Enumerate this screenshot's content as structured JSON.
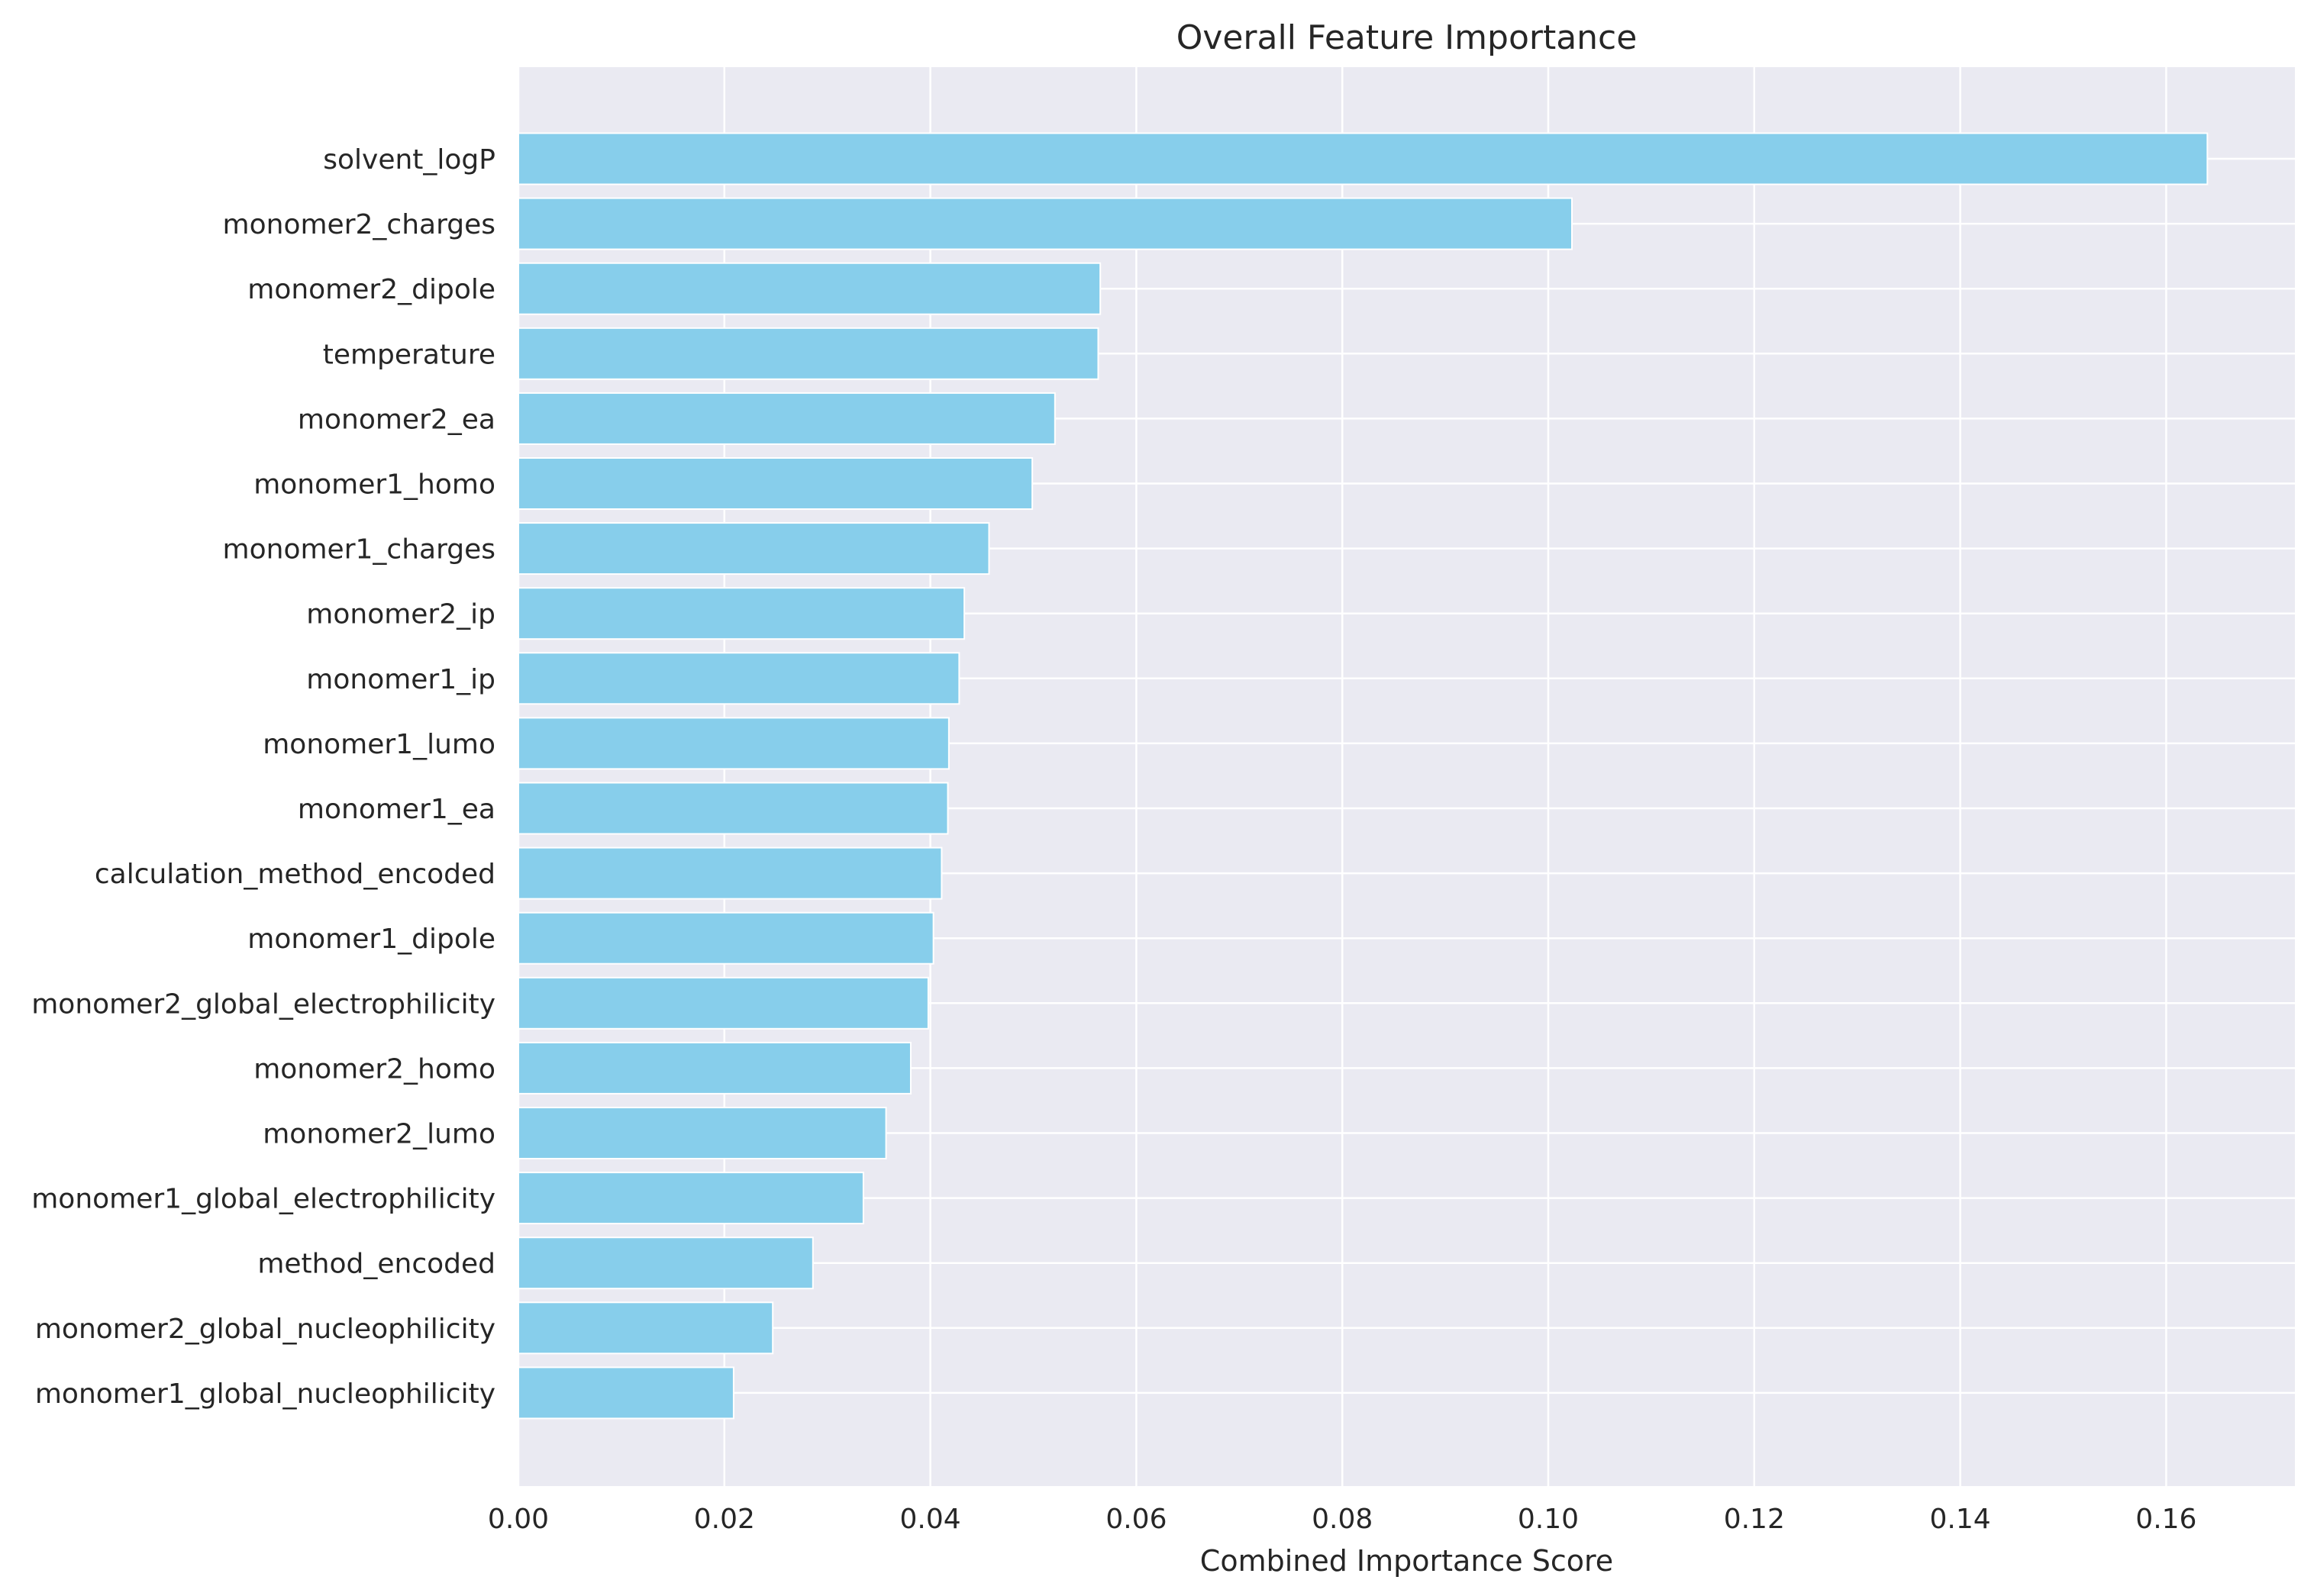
{
  "chart_data": {
    "type": "bar",
    "orientation": "horizontal",
    "title": "Overall Feature Importance",
    "xlabel": "Combined Importance Score",
    "ylabel": "",
    "xlim": [
      0,
      0.1725
    ],
    "xticks": [
      0.0,
      0.02,
      0.04,
      0.06,
      0.08,
      0.1,
      0.12,
      0.14,
      0.16
    ],
    "xtick_labels": [
      "0.00",
      "0.02",
      "0.04",
      "0.06",
      "0.08",
      "0.10",
      "0.12",
      "0.14",
      "0.16"
    ],
    "grid": true,
    "legend": "none",
    "categories": [
      "solvent_logP",
      "monomer2_charges",
      "monomer2_dipole",
      "temperature",
      "monomer2_ea",
      "monomer1_homo",
      "monomer1_charges",
      "monomer2_ip",
      "monomer1_ip",
      "monomer1_lumo",
      "monomer1_ea",
      "calculation_method_encoded",
      "monomer1_dipole",
      "monomer2_global_electrophilicity",
      "monomer2_homo",
      "monomer2_lumo",
      "monomer1_global_electrophilicity",
      "method_encoded",
      "monomer2_global_nucleophilicity",
      "monomer1_global_nucleophilicity"
    ],
    "values": [
      0.164,
      0.1023,
      0.0565,
      0.0563,
      0.0521,
      0.0499,
      0.0457,
      0.0433,
      0.0428,
      0.0418,
      0.0417,
      0.0411,
      0.0403,
      0.0398,
      0.0381,
      0.0357,
      0.0335,
      0.0286,
      0.0247,
      0.0209
    ],
    "bar_color": "#87ceeb",
    "background_color": "#eaeaf2",
    "grid_color": "#ffffff"
  }
}
